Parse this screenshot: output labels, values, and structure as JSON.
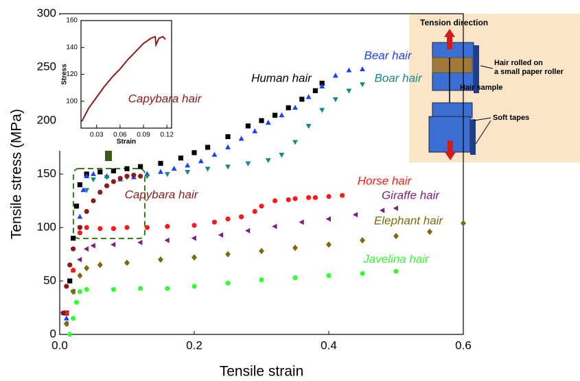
{
  "chart_data": [
    {
      "type": "scatter",
      "xlabel": "Tensile strain",
      "ylabel": "Tensile stress (MPa)",
      "xlim": [
        0,
        0.6
      ],
      "ylim": [
        0,
        300
      ],
      "xticks": [
        {
          "value": 0,
          "label": "0.0"
        },
        0.2,
        0.4,
        0.6
      ],
      "yticks": [
        0,
        50,
        100,
        150,
        200,
        250,
        300
      ],
      "series": [
        {
          "name": "Human hair",
          "color": "#000000",
          "marker": "square",
          "x": [
            0.01,
            0.015,
            0.02,
            0.025,
            0.03,
            0.04,
            0.06,
            0.08,
            0.1,
            0.12,
            0.15,
            0.18,
            0.2,
            0.22,
            0.25,
            0.28,
            0.3,
            0.32,
            0.34,
            0.36,
            0.38,
            0.39
          ],
          "values": [
            20,
            50,
            90,
            120,
            140,
            150,
            152,
            153,
            155,
            157,
            160,
            165,
            170,
            175,
            185,
            195,
            200,
            205,
            212,
            220,
            228,
            235
          ]
        },
        {
          "name": "Bear hair",
          "color": "#1f3fff",
          "marker": "triangle-up",
          "x": [
            0.01,
            0.02,
            0.03,
            0.035,
            0.04,
            0.05,
            0.07,
            0.09,
            0.11,
            0.13,
            0.15,
            0.17,
            0.19,
            0.21,
            0.23,
            0.25,
            0.27,
            0.29,
            0.31,
            0.33,
            0.35,
            0.37,
            0.39,
            0.41,
            0.43,
            0.45
          ],
          "values": [
            15,
            60,
            110,
            135,
            148,
            150,
            148,
            145,
            147,
            150,
            152,
            155,
            158,
            162,
            168,
            175,
            183,
            190,
            198,
            205,
            212,
            222,
            232,
            242,
            247,
            248
          ]
        },
        {
          "name": "Boar hair",
          "color": "#1a8585",
          "marker": "triangle-down",
          "x": [
            0.02,
            0.03,
            0.04,
            0.05,
            0.07,
            0.1,
            0.13,
            0.16,
            0.19,
            0.22,
            0.25,
            0.28,
            0.31,
            0.33,
            0.35,
            0.37,
            0.39,
            0.41,
            0.43,
            0.45
          ],
          "values": [
            40,
            100,
            135,
            145,
            147,
            147,
            148,
            150,
            152,
            155,
            157,
            160,
            163,
            168,
            180,
            195,
            210,
            220,
            228,
            234
          ]
        },
        {
          "name": "Horse hair",
          "color": "#ff1a1a",
          "marker": "circle",
          "x": [
            0.01,
            0.02,
            0.03,
            0.04,
            0.06,
            0.08,
            0.1,
            0.13,
            0.16,
            0.2,
            0.23,
            0.25,
            0.27,
            0.29,
            0.3,
            0.32,
            0.34,
            0.35,
            0.37,
            0.38,
            0.4,
            0.42
          ],
          "values": [
            20,
            60,
            95,
            100,
            99,
            99,
            100,
            100,
            101,
            102,
            105,
            108,
            110,
            115,
            120,
            125,
            126,
            127,
            128,
            128,
            129,
            130
          ]
        },
        {
          "name": "Giraffe hair",
          "color": "#7a1f7a",
          "marker": "triangle-left",
          "x": [
            0.01,
            0.02,
            0.03,
            0.04,
            0.05,
            0.08,
            0.12,
            0.16,
            0.2,
            0.24,
            0.28,
            0.32,
            0.36,
            0.4,
            0.44,
            0.48,
            0.5
          ],
          "values": [
            10,
            40,
            70,
            80,
            83,
            84,
            86,
            88,
            90,
            93,
            97,
            101,
            105,
            108,
            112,
            116,
            118
          ]
        },
        {
          "name": "Elephant hair",
          "color": "#7a6a10",
          "marker": "diamond",
          "x": [
            0.01,
            0.02,
            0.03,
            0.04,
            0.06,
            0.1,
            0.15,
            0.2,
            0.25,
            0.3,
            0.35,
            0.4,
            0.45,
            0.5,
            0.55,
            0.6
          ],
          "values": [
            10,
            40,
            55,
            62,
            65,
            67,
            70,
            72,
            75,
            78,
            81,
            84,
            88,
            92,
            96,
            104
          ]
        },
        {
          "name": "Javelina hair",
          "color": "#33ff33",
          "marker": "circle",
          "x": [
            0.015,
            0.02,
            0.025,
            0.03,
            0.04,
            0.08,
            0.12,
            0.16,
            0.2,
            0.25,
            0.3,
            0.35,
            0.4,
            0.45,
            0.5
          ],
          "values": [
            0,
            15,
            30,
            40,
            42,
            42,
            43,
            43,
            45,
            48,
            51,
            53,
            55,
            57,
            59
          ]
        },
        {
          "name": "Capybara hair",
          "color": "#8b1a1a",
          "marker": "circle",
          "x": [
            0.005,
            0.01,
            0.015,
            0.02,
            0.03,
            0.04,
            0.05,
            0.06,
            0.07,
            0.08,
            0.09,
            0.1,
            0.11,
            0.12
          ],
          "values": [
            20,
            45,
            65,
            80,
            100,
            115,
            125,
            133,
            139,
            143,
            146,
            148,
            149,
            148
          ]
        }
      ]
    },
    {
      "type": "line",
      "xlabel": "Strain",
      "ylabel": "Stress",
      "xlim": [
        0.01,
        0.126
      ],
      "ylim": [
        80,
        160
      ],
      "xticks": [
        0.03,
        0.06,
        0.09,
        0.12
      ],
      "yticks": [
        100,
        120,
        140,
        160
      ],
      "series": [
        {
          "name": "Capybara hair",
          "color": "#8b1a1a",
          "x": [
            0.011,
            0.02,
            0.03,
            0.04,
            0.05,
            0.06,
            0.07,
            0.08,
            0.09,
            0.1,
            0.105,
            0.106,
            0.11,
            0.115,
            0.118
          ],
          "values": [
            85,
            95,
            103,
            111,
            118,
            124,
            131,
            137,
            143,
            147,
            148,
            142,
            147,
            148,
            146
          ]
        }
      ]
    }
  ],
  "diagram": {
    "labels": [
      "Tension direction",
      "Hair rolled on",
      "a small paper roller",
      "Hair sample",
      "Soft tapes"
    ]
  }
}
